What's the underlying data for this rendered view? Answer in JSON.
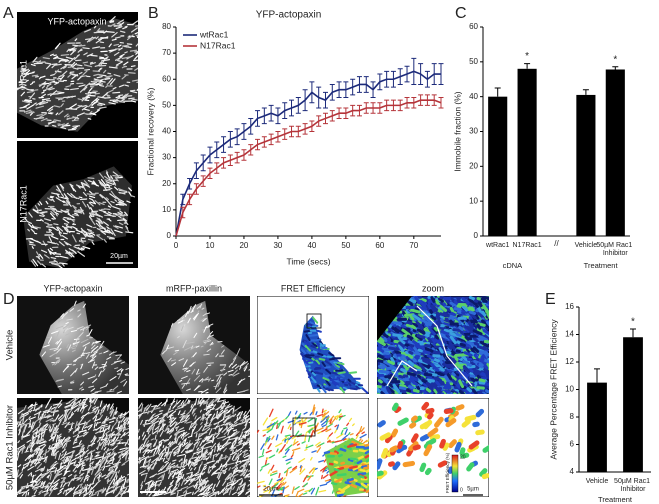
{
  "panel_labels": [
    "A",
    "B",
    "C",
    "D",
    "E"
  ],
  "panel_a": {
    "title": "YFP-actopaxin",
    "rows": [
      "wtRac1",
      "N17Rac1"
    ],
    "scale_bar": "20µm"
  },
  "panel_d": {
    "columns": [
      "YFP-actopaxin",
      "mRFP-paxillin",
      "FRET Efficiency",
      "zoom"
    ],
    "rows": [
      "Vehicle",
      "50µM Rac1 Inhibitor"
    ],
    "scale_bars": [
      "20µm",
      "5µm"
    ],
    "colorbar": {
      "label": "FRET Efficiency (%)",
      "ticks": [
        0,
        20
      ]
    }
  },
  "chart_data": [
    {
      "type": "line",
      "title": "YFP-actopaxin",
      "xlabel": "Time (secs)",
      "ylabel": "Fractional recovery (%)",
      "x": [
        0,
        2,
        4,
        6,
        8,
        10,
        12,
        14,
        16,
        18,
        20,
        22,
        24,
        26,
        28,
        30,
        32,
        34,
        36,
        38,
        40,
        42,
        44,
        46,
        48,
        50,
        52,
        54,
        56,
        58,
        60,
        62,
        64,
        66,
        68,
        70,
        72,
        74,
        76,
        78
      ],
      "xlim": [
        0,
        78
      ],
      "xticks": [
        0,
        10,
        20,
        30,
        40,
        50,
        60,
        70
      ],
      "ylim": [
        0,
        80
      ],
      "yticks": [
        0,
        10,
        20,
        30,
        40,
        50,
        60,
        70,
        80
      ],
      "grid": false,
      "legend": "upper-left",
      "series": [
        {
          "name": "wtRac1",
          "color": "#1c2a7a",
          "values": [
            0,
            14,
            20,
            25,
            28,
            31,
            33,
            35,
            37,
            38,
            40,
            42,
            45,
            46,
            47,
            46,
            48,
            49,
            50,
            52,
            55,
            53,
            52,
            55,
            56,
            56,
            57,
            58,
            58,
            56,
            59,
            60,
            60,
            61,
            62,
            63,
            62,
            60,
            62,
            62
          ],
          "errors": [
            0,
            2,
            2,
            3,
            3,
            3,
            3,
            3,
            3,
            3,
            3,
            3,
            3,
            3,
            3,
            3,
            3,
            3,
            3,
            4,
            4,
            4,
            3,
            3,
            3,
            3,
            3,
            3,
            3,
            3,
            3,
            3,
            3,
            3,
            3,
            5,
            4,
            3,
            4,
            4
          ]
        },
        {
          "name": "N17Rac1",
          "color": "#b5343a",
          "values": [
            0,
            9,
            14,
            18,
            21,
            24,
            26,
            28,
            29,
            30,
            31,
            33,
            35,
            36,
            37,
            38,
            39,
            40,
            40,
            41,
            42,
            44,
            45,
            46,
            47,
            47,
            48,
            48,
            49,
            49,
            49,
            50,
            50,
            50,
            51,
            51,
            52,
            52,
            52,
            51
          ],
          "errors": [
            0,
            2,
            2,
            2,
            2,
            2,
            2,
            2,
            2,
            2,
            2,
            2,
            2,
            2,
            2,
            2,
            2,
            2,
            2,
            2,
            2,
            2,
            2,
            2,
            2,
            2,
            2,
            2,
            2,
            2,
            2,
            2,
            2,
            2,
            2,
            2,
            2,
            2,
            2,
            2
          ]
        }
      ]
    },
    {
      "type": "bar",
      "ylabel": "Immobile fraction (%)",
      "categories": [
        "wtRac1",
        "N17Rac1",
        null,
        "Vehicle",
        "50µM Rac1 Inhibitor"
      ],
      "values": [
        40,
        48,
        null,
        40.5,
        47.8
      ],
      "errors": [
        2.5,
        1.5,
        null,
        1.5,
        0.8
      ],
      "color": "#000000",
      "groups": [
        "cDNA",
        "Treatment"
      ],
      "break_label": "//",
      "significance_label": "*",
      "significant": [
        false,
        true,
        false,
        false,
        true
      ],
      "ylim": [
        0,
        60
      ],
      "yticks": [
        0,
        10,
        20,
        30,
        40,
        50,
        60
      ],
      "grid": false
    },
    {
      "type": "bar",
      "ylabel": "Average Percentage FRET Efficiency",
      "xlabel": "Treatment",
      "categories": [
        "Vehicle",
        "50µM Rac1 Inhibitor"
      ],
      "values": [
        10.5,
        13.8
      ],
      "errors": [
        1,
        0.6
      ],
      "color": "#000000",
      "significance_label": "*",
      "significant": [
        false,
        true
      ],
      "ylim": [
        4,
        16
      ],
      "yticks": [
        4,
        6,
        8,
        10,
        12,
        14,
        16
      ],
      "grid": false
    }
  ]
}
